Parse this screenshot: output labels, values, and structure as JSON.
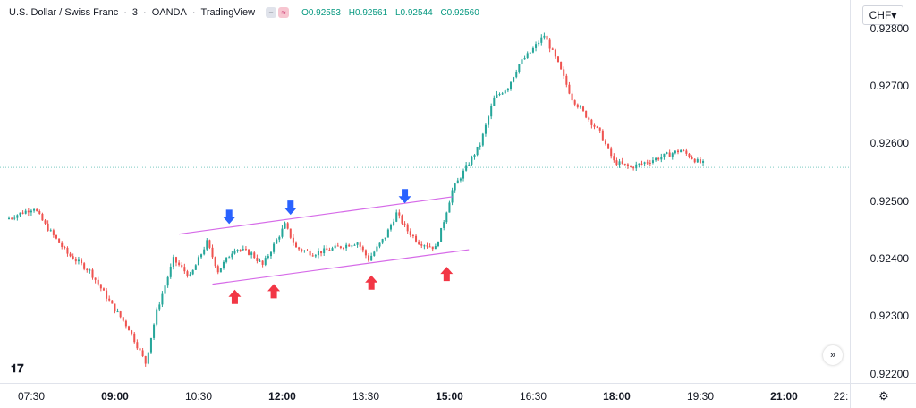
{
  "header": {
    "symbol": "U.S. Dollar / Swiss Franc",
    "interval": "3",
    "broker": "OANDA",
    "platform": "TradingView",
    "ohlc": {
      "o": "O0.92553",
      "h": "H0.92561",
      "l": "L0.92544",
      "c": "C0.92560"
    },
    "currency_button": "CHF"
  },
  "icons": {
    "logo": "tradingview-logo-icon",
    "scroll": "scroll-right-icon",
    "settings": "gear-icon"
  },
  "colors": {
    "up": "#26a69a",
    "down": "#ef5350",
    "channel": "#d66be8",
    "marker_up": "#f23645",
    "marker_down": "#2962ff"
  },
  "chart_data": {
    "type": "candlestick",
    "ylim": [
      0.9219,
      0.9282
    ],
    "x_count": 250,
    "price_ticks": [
      "0.92800",
      "0.92700",
      "0.92600",
      "0.92500",
      "0.92400",
      "0.92300",
      "0.92200"
    ],
    "time_ticks": [
      {
        "label": "07:30",
        "x": 0,
        "bold": false
      },
      {
        "label": "09:00",
        "x": 30,
        "bold": true
      },
      {
        "label": "10:30",
        "x": 60,
        "bold": false
      },
      {
        "label": "12:00",
        "x": 90,
        "bold": true
      },
      {
        "label": "13:30",
        "x": 120,
        "bold": false
      },
      {
        "label": "15:00",
        "x": 150,
        "bold": true
      },
      {
        "label": "16:30",
        "x": 180,
        "bold": false
      },
      {
        "label": "18:00",
        "x": 210,
        "bold": true
      },
      {
        "label": "19:30",
        "x": 240,
        "bold": false
      },
      {
        "label": "21:00",
        "x": 270,
        "bold": true
      },
      {
        "label": "22:",
        "x": 300,
        "bold": false
      }
    ],
    "path": [
      [
        0,
        0.9247
      ],
      [
        10,
        0.9249
      ],
      [
        14,
        0.9246
      ],
      [
        22,
        0.9241
      ],
      [
        30,
        0.9238
      ],
      [
        38,
        0.9232
      ],
      [
        44,
        0.9228
      ],
      [
        50,
        0.9222
      ],
      [
        54,
        0.9231
      ],
      [
        60,
        0.924
      ],
      [
        66,
        0.9237
      ],
      [
        72,
        0.9243
      ],
      [
        76,
        0.9238
      ],
      [
        82,
        0.9242
      ],
      [
        88,
        0.9241
      ],
      [
        92,
        0.9239
      ],
      [
        100,
        0.9246
      ],
      [
        104,
        0.9242
      ],
      [
        110,
        0.9241
      ],
      [
        118,
        0.9242
      ],
      [
        126,
        0.9243
      ],
      [
        130,
        0.924
      ],
      [
        136,
        0.9244
      ],
      [
        140,
        0.9248
      ],
      [
        144,
        0.9245
      ],
      [
        148,
        0.9243
      ],
      [
        154,
        0.9242
      ],
      [
        156,
        0.9245
      ],
      [
        160,
        0.9252
      ],
      [
        165,
        0.9256
      ],
      [
        170,
        0.926
      ],
      [
        175,
        0.9268
      ],
      [
        180,
        0.927
      ],
      [
        184,
        0.9274
      ],
      [
        188,
        0.9276
      ],
      [
        193,
        0.9279
      ],
      [
        198,
        0.9274
      ],
      [
        203,
        0.9268
      ],
      [
        208,
        0.9265
      ],
      [
        213,
        0.9262
      ],
      [
        218,
        0.9257
      ],
      [
        224,
        0.9256
      ],
      [
        230,
        0.9257
      ],
      [
        236,
        0.9258
      ],
      [
        242,
        0.9259
      ],
      [
        248,
        0.9257
      ],
      [
        254,
        0.9256
      ],
      [
        260,
        0.9258
      ],
      [
        266,
        0.9256
      ],
      [
        272,
        0.9255
      ],
      [
        276,
        0.9254
      ],
      [
        280,
        0.9255
      ],
      [
        285,
        0.9256
      ]
    ],
    "current_price": 0.9256,
    "channel": {
      "upper": [
        [
          61,
          0.92444
        ],
        [
          159,
          0.92509
        ]
      ],
      "lower": [
        [
          73,
          0.92357
        ],
        [
          165,
          0.92417
        ]
      ]
    },
    "markers": [
      {
        "kind": "resistance",
        "x": 79,
        "y": 0.92474
      },
      {
        "kind": "resistance",
        "x": 101,
        "y": 0.9249
      },
      {
        "kind": "resistance",
        "x": 142,
        "y": 0.9251
      },
      {
        "kind": "support",
        "x": 81,
        "y": 0.92335
      },
      {
        "kind": "support",
        "x": 95,
        "y": 0.92345
      },
      {
        "kind": "support",
        "x": 130,
        "y": 0.9236
      },
      {
        "kind": "support",
        "x": 157,
        "y": 0.92375
      }
    ]
  }
}
